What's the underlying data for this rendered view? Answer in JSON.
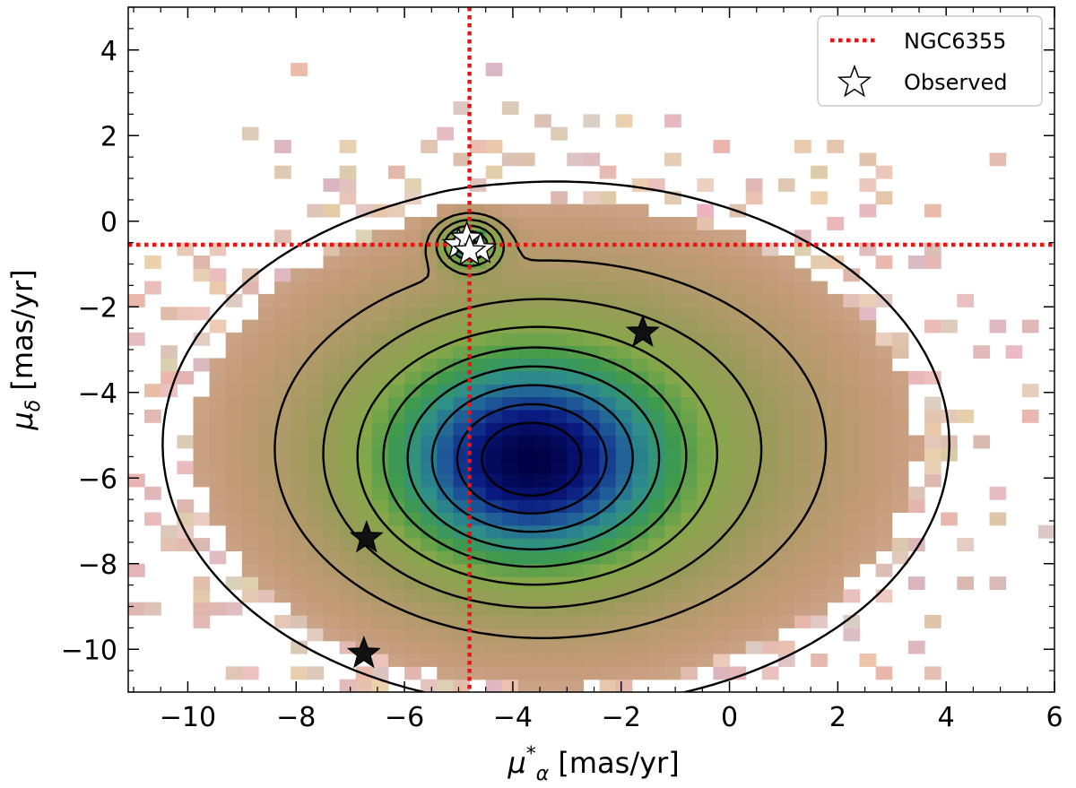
{
  "chart_data": {
    "type": "heatmap",
    "description_kind": "2D density histogram of proper motions with contours",
    "xlabel_main": "μ",
    "xlabel_sub": "α",
    "xlabel_sup": "*",
    "xlabel_unit": " [mas/yr]",
    "ylabel_main": "μ",
    "ylabel_sub": "δ",
    "ylabel_unit": " [mas/yr]",
    "xlim": [
      -11.1,
      6.0
    ],
    "ylim": [
      -11.0,
      5.0
    ],
    "xticks": [
      -10,
      -8,
      -6,
      -4,
      -2,
      0,
      2,
      4,
      6
    ],
    "xtick_labels": [
      "−10",
      "−8",
      "−6",
      "−4",
      "−2",
      "0",
      "2",
      "4",
      "6"
    ],
    "yticks": [
      4,
      2,
      0,
      -2,
      -4,
      -6,
      -8,
      -10
    ],
    "ytick_labels": [
      "4",
      "2",
      "0",
      "−2",
      "−4",
      "−6",
      "−8",
      "−10"
    ],
    "grid": false,
    "legend_position": "top-right",
    "legend": [
      {
        "label": "NGC6355",
        "style": "dotted-line",
        "color": "#ee1111"
      },
      {
        "label": "Observed",
        "style": "open-star",
        "color": "#000000"
      }
    ],
    "reference_lines": {
      "name": "NGC6355",
      "pmra": -4.8,
      "pmdec": -0.55,
      "color": "#ee1111"
    },
    "density_peaks": [
      {
        "pmra": -3.7,
        "pmdec": -5.6,
        "amplitude": 1.0,
        "sigma_x": 1.6,
        "sigma_y": 1.5
      },
      {
        "pmra": -4.8,
        "pmdec": -0.55,
        "amplitude": 0.6,
        "sigma_x": 0.35,
        "sigma_y": 0.35
      },
      {
        "pmra": -3.2,
        "pmdec": -5.2,
        "amplitude": 0.35,
        "sigma_x": 3.2,
        "sigma_y": 2.7
      }
    ],
    "contour_levels": [
      0.02,
      0.08,
      0.15,
      0.24,
      0.34,
      0.46,
      0.6,
      0.75,
      0.88
    ],
    "colormap": [
      "#ffffff",
      "#e8cfc6",
      "#c49a78",
      "#9a9a5a",
      "#86a84a",
      "#3f9a4b",
      "#2e8f8a",
      "#1f5a9a",
      "#0a1a80",
      "#000044"
    ],
    "observed_stars": [
      {
        "pmra": -5.0,
        "pmdec": -0.55,
        "style": "open"
      },
      {
        "pmra": -4.85,
        "pmdec": -0.4,
        "style": "open"
      },
      {
        "pmra": -4.6,
        "pmdec": -0.65,
        "style": "open"
      },
      {
        "pmra": -4.8,
        "pmdec": -0.7,
        "style": "open"
      },
      {
        "pmra": -1.6,
        "pmdec": -2.6,
        "style": "filled"
      },
      {
        "pmra": -6.7,
        "pmdec": -7.4,
        "style": "filled"
      },
      {
        "pmra": -6.75,
        "pmdec": -10.1,
        "style": "filled"
      }
    ]
  }
}
